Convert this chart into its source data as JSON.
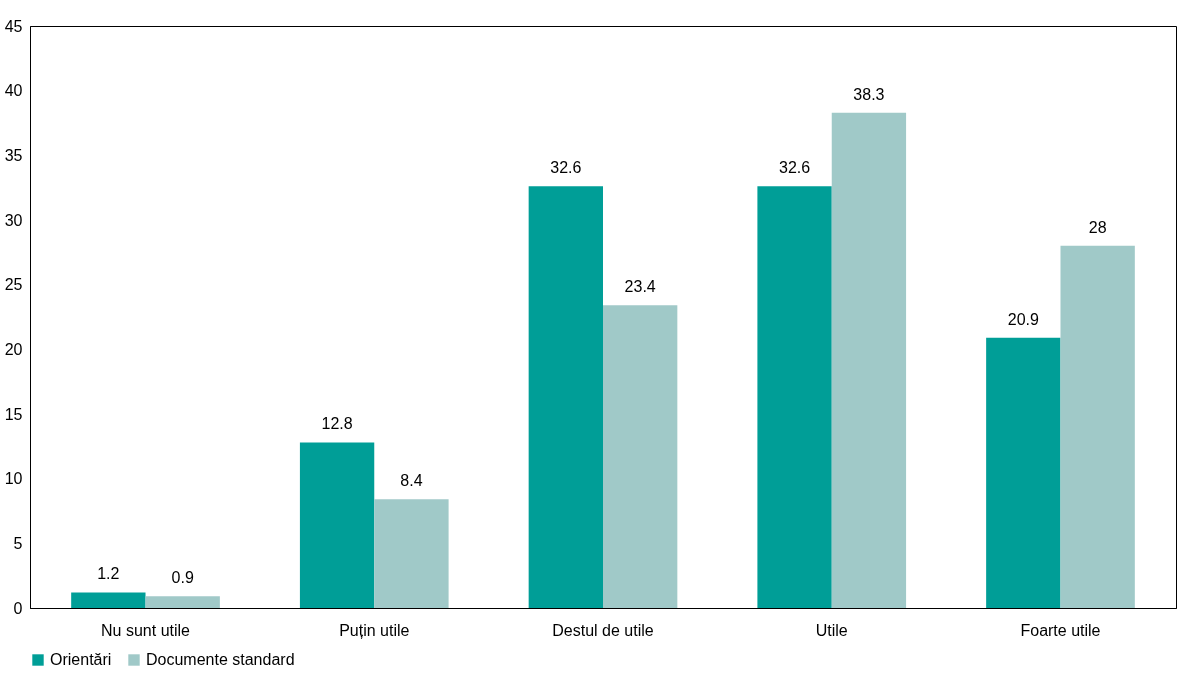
{
  "chart_data": {
    "type": "bar",
    "categories": [
      "Nu sunt utile",
      "Puțin utile",
      "Destul de utile",
      "Utile",
      "Foarte utile"
    ],
    "series": [
      {
        "name": "Orientări",
        "color": "#009e97",
        "values": [
          1.2,
          12.8,
          32.6,
          32.6,
          20.9
        ]
      },
      {
        "name": "Documente standard",
        "color": "#a0c9c8",
        "values": [
          0.9,
          8.4,
          23.4,
          38.3,
          28
        ]
      }
    ],
    "ylim": [
      0,
      45
    ],
    "yticks": [
      0,
      5,
      10,
      15,
      20,
      25,
      30,
      35,
      40,
      45
    ],
    "data_labels": true,
    "grid": false,
    "legend": "bottom"
  }
}
